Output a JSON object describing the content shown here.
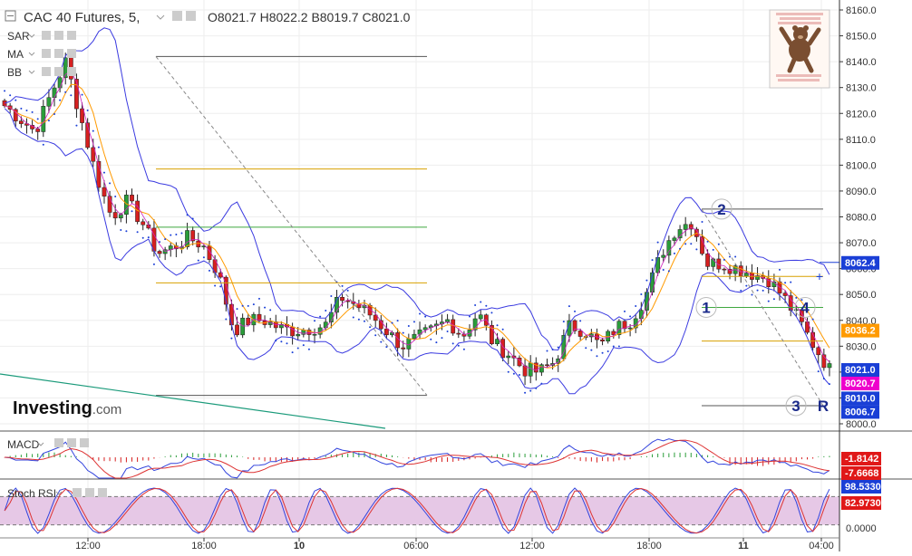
{
  "header": {
    "symbol": "CAC 40 Futures",
    "interval": "5",
    "ohlc": [
      {
        "k": "O",
        "v": "8021.7"
      },
      {
        "k": "H",
        "v": "8022.2"
      },
      {
        "k": "B",
        "v": "8019.7"
      },
      {
        "k": "C",
        "v": "8021.0"
      }
    ],
    "indicators": [
      "SAR",
      "MA",
      "BB"
    ]
  },
  "logo": {
    "brand": "Investing",
    "tld": ".com"
  },
  "pane_labels": {
    "macd": "MACD",
    "stoch": "Stoch RSI"
  },
  "chart_data": [
    {
      "type": "line",
      "pane": "price",
      "symbol": "CAC 40 Futures",
      "interval": "5",
      "ylim": [
        7998,
        8162
      ],
      "y_ticks": [
        "8160.0",
        "8150.0",
        "8140.0",
        "8130.0",
        "8120.0",
        "8110.0",
        "8100.0",
        "8090.0",
        "8080.0",
        "8070.0",
        "8060.0",
        "8050.0",
        "8040.0",
        "8030.0",
        "8020.0",
        "8010.0",
        "8000.0"
      ],
      "x_tick_labels": [
        "12:00",
        "18:00",
        "10",
        "06:00",
        "12:00",
        "18:00",
        "11",
        "04:00"
      ],
      "series": [
        {
          "name": "close",
          "color": "#222222",
          "values": [
            8123,
            8118,
            8113,
            8127,
            8140,
            8118,
            8096,
            8080,
            8086,
            8078,
            8066,
            8068,
            8072,
            8069,
            8058,
            8036,
            8040,
            8040,
            8037,
            8036,
            8037,
            8038,
            8049,
            8046,
            8042,
            8036,
            8030,
            8033,
            8036,
            8040,
            8034,
            8043,
            8031,
            8027,
            8021,
            8020,
            8024,
            8038,
            8036,
            8030,
            8037,
            8040,
            8050,
            8066,
            8076,
            8078,
            8062,
            8062,
            8060,
            8058,
            8056,
            8049,
            8040,
            8030,
            8021
          ]
        }
      ],
      "price_labels": [
        {
          "text": "8062.4",
          "value": 8062.4,
          "color": "#1a3fd6"
        },
        {
          "text": "8036.2",
          "value": 8036.2,
          "color": "#ff9a00"
        },
        {
          "text": "8021.0",
          "value": 8021.0,
          "color": "#1a3fd6"
        },
        {
          "text": "8020.7",
          "value": 8020.7,
          "color": "#ee00cc"
        },
        {
          "text": "8010.0",
          "value": 8010.0,
          "color": "#1a3fd6"
        },
        {
          "text": "8006.7",
          "value": 8006.7,
          "color": "#1a3fd6"
        }
      ],
      "annotations": [
        "1",
        "2",
        "3",
        "4",
        "R"
      ]
    },
    {
      "type": "line",
      "pane": "macd",
      "value_labels": [
        {
          "text": "-1.8142",
          "color": "#e01818"
        },
        {
          "text": "-7.6668",
          "color": "#e01818"
        }
      ]
    },
    {
      "type": "line",
      "pane": "stoch_rsi",
      "y_ticks": [
        "0.0000"
      ],
      "value_labels": [
        {
          "text": "98.5330",
          "color": "#1a3fd6"
        },
        {
          "text": "82.9730",
          "color": "#e01818"
        }
      ]
    }
  ],
  "colors": {
    "up": "#2a9d3a",
    "down": "#d62020",
    "bollinger": "#3b3be0",
    "ma": "#ff9a00",
    "sar": "#1a3fd6",
    "stoch_fill": "#e6c8e6",
    "grid": "#eeeeee"
  }
}
